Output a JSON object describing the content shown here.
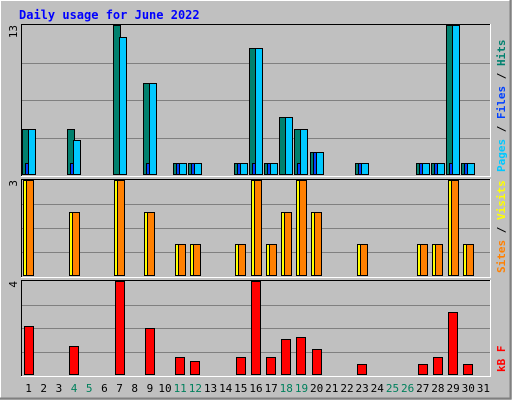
{
  "chart_data": {
    "type": "bar",
    "title": "Daily usage for June 2022",
    "categories": [
      "1",
      "2",
      "3",
      "4",
      "5",
      "6",
      "7",
      "8",
      "9",
      "10",
      "11",
      "12",
      "13",
      "14",
      "15",
      "16",
      "17",
      "18",
      "19",
      "20",
      "21",
      "22",
      "23",
      "24",
      "25",
      "26",
      "27",
      "28",
      "29",
      "30",
      "31"
    ],
    "weekend_days": [
      4,
      5,
      11,
      12,
      18,
      19,
      25,
      26
    ],
    "panels": [
      {
        "ymax": 13,
        "ymax_label": "13",
        "legend": [
          "Pages",
          "Files",
          "Hits"
        ],
        "legend_colors": [
          "#00c8ff",
          "#0040ff",
          "#00806e"
        ],
        "series": [
          {
            "name": "Hits",
            "color": "#00806e",
            "values": [
              4,
              0,
              0,
              4,
              0,
              0,
              13,
              0,
              8,
              0,
              1,
              1,
              0,
              0,
              1,
              11,
              1,
              5,
              4,
              2,
              0,
              0,
              1,
              0,
              0,
              0,
              1,
              1,
              13,
              1,
              0
            ]
          },
          {
            "name": "Files",
            "color": "#0040ff",
            "values": [
              1,
              0,
              0,
              1,
              0,
              0,
              0,
              0,
              1,
              0,
              1,
              1,
              0,
              0,
              1,
              1,
              1,
              0,
              1,
              2,
              0,
              0,
              1,
              0,
              0,
              0,
              1,
              1,
              1,
              1,
              0
            ]
          },
          {
            "name": "Pages",
            "color": "#00c8ff",
            "values": [
              4,
              0,
              0,
              3,
              0,
              0,
              12,
              0,
              8,
              0,
              1,
              1,
              0,
              0,
              1,
              11,
              1,
              5,
              4,
              2,
              0,
              0,
              1,
              0,
              0,
              0,
              1,
              1,
              13,
              1,
              0
            ]
          }
        ]
      },
      {
        "ymax": 3,
        "ymax_label": "3",
        "legend": [
          "Sites",
          "Visits"
        ],
        "legend_colors": [
          "#ff8000",
          "#ffff00"
        ],
        "series": [
          {
            "name": "Visits",
            "color": "#ffff00",
            "values": [
              3,
              0,
              0,
              2,
              0,
              0,
              3,
              0,
              2,
              0,
              1,
              1,
              0,
              0,
              1,
              3,
              1,
              2,
              3,
              2,
              0,
              0,
              1,
              0,
              0,
              0,
              1,
              1,
              3,
              1,
              0
            ]
          },
          {
            "name": "Sites",
            "color": "#ff8000",
            "values": [
              3,
              0,
              0,
              2,
              0,
              0,
              3,
              0,
              2,
              0,
              1,
              1,
              0,
              0,
              1,
              3,
              1,
              2,
              3,
              2,
              0,
              0,
              1,
              0,
              0,
              0,
              1,
              1,
              3,
              1,
              0
            ]
          }
        ]
      },
      {
        "ymax": 4,
        "ymax_label": "4",
        "legend": [
          "kB F"
        ],
        "legend_colors": [
          "#ff0000"
        ],
        "series": [
          {
            "name": "kB F",
            "color": "#ff0000",
            "values": [
              2.1,
              0,
              0,
              1.25,
              0,
              0,
              4,
              0,
              2.0,
              0,
              0.75,
              0.6,
              0,
              0,
              0.75,
              4,
              0.75,
              1.55,
              1.6,
              1.1,
              0,
              0,
              0.45,
              0,
              0,
              0,
              0.45,
              0.75,
              2.7,
              0.45,
              0
            ]
          }
        ]
      }
    ]
  },
  "colors": {
    "background": "#c0c0c0",
    "plot_area": "#c0c0c0",
    "gridline": "#808080",
    "title": "#0000ff",
    "axis_text": "#000000",
    "weekend_text": "#00805c"
  }
}
